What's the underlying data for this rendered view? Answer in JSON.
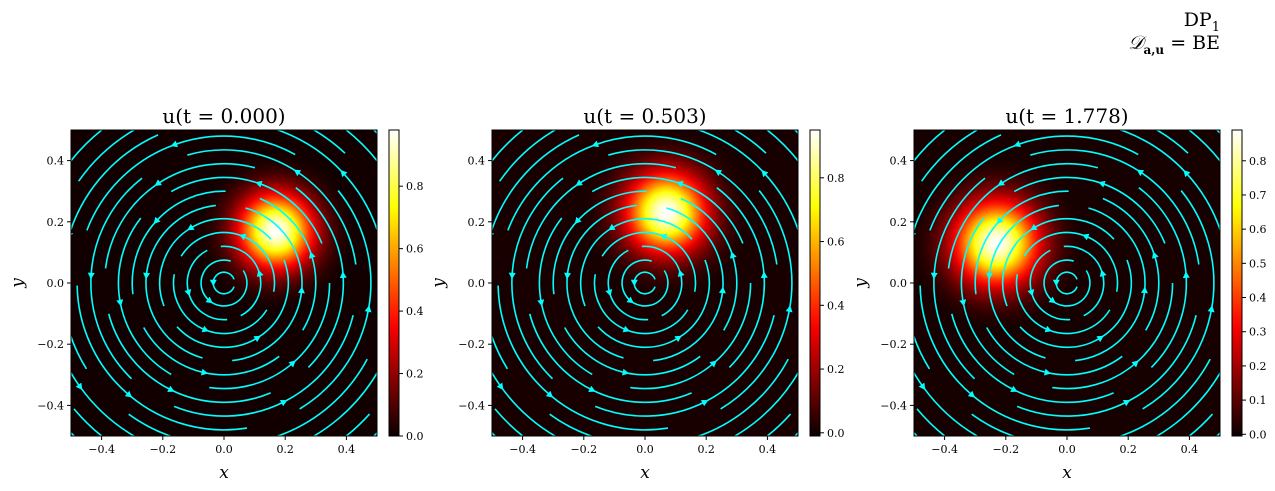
{
  "suptitle": {
    "line1_main": "DP",
    "line1_sub": "1",
    "line2_main": "𝒟",
    "line2_sub": "a,u",
    "line2_rest": " = BE"
  },
  "chart_data": [
    {
      "type": "heatmap",
      "title": "u(t = 0.000)",
      "xlabel": "x",
      "ylabel": "y",
      "xlim": [
        -0.5,
        0.5
      ],
      "ylim": [
        -0.5,
        0.5
      ],
      "xticks": [
        -0.4,
        -0.2,
        0.0,
        0.2,
        0.4
      ],
      "yticks": [
        -0.4,
        -0.2,
        0.0,
        0.2,
        0.4
      ],
      "xtick_labels": [
        "−0.4",
        "−0.2",
        "0.0",
        "0.2",
        "0.4"
      ],
      "ytick_labels": [
        "−0.4",
        "−0.2",
        "0.0",
        "0.2",
        "0.4"
      ],
      "colormap": "hot",
      "streamline_color": "#00ffff",
      "blob": {
        "cx": 0.17,
        "cy": 0.17,
        "sigma": 0.085,
        "peak": 0.98
      },
      "colorbar": {
        "min": 0.0,
        "max": 0.98,
        "ticks": [
          0.0,
          0.2,
          0.4,
          0.6,
          0.8
        ],
        "tick_labels": [
          "0.0",
          "0.2",
          "0.4",
          "0.6",
          "0.8"
        ]
      }
    },
    {
      "type": "heatmap",
      "title": "u(t = 0.503)",
      "xlabel": "x",
      "ylabel": "y",
      "xlim": [
        -0.5,
        0.5
      ],
      "ylim": [
        -0.5,
        0.5
      ],
      "xticks": [
        -0.4,
        -0.2,
        0.0,
        0.2,
        0.4
      ],
      "yticks": [
        -0.4,
        -0.2,
        0.0,
        0.2,
        0.4
      ],
      "xtick_labels": [
        "−0.4",
        "−0.2",
        "0.0",
        "0.2",
        "0.4"
      ],
      "ytick_labels": [
        "−0.4",
        "−0.2",
        "0.0",
        "0.2",
        "0.4"
      ],
      "colormap": "hot",
      "streamline_color": "#00ffff",
      "blob": {
        "cx": 0.07,
        "cy": 0.23,
        "sigma": 0.09,
        "peak": 0.95
      },
      "colorbar": {
        "min": -0.01,
        "max": 0.95,
        "ticks": [
          0.0,
          0.2,
          0.4,
          0.6,
          0.8
        ],
        "tick_labels": [
          "0.0",
          "0.2",
          "0.4",
          "0.6",
          "0.8"
        ]
      }
    },
    {
      "type": "heatmap",
      "title": "u(t = 1.778)",
      "xlabel": "x",
      "ylabel": "y",
      "xlim": [
        -0.5,
        0.5
      ],
      "ylim": [
        -0.5,
        0.5
      ],
      "xticks": [
        -0.4,
        -0.2,
        0.0,
        0.2,
        0.4
      ],
      "yticks": [
        -0.4,
        -0.2,
        0.0,
        0.2,
        0.4
      ],
      "xtick_labels": [
        "−0.4",
        "−0.2",
        "0.0",
        "0.2",
        "0.4"
      ],
      "ytick_labels": [
        "−0.4",
        "−0.2",
        "0.0",
        "0.2",
        "0.4"
      ],
      "colormap": "hot",
      "streamline_color": "#00ffff",
      "blob": {
        "cx": -0.23,
        "cy": 0.13,
        "sigma": 0.095,
        "peak": 0.89
      },
      "colorbar": {
        "min": -0.005,
        "max": 0.89,
        "ticks": [
          0.0,
          0.1,
          0.2,
          0.3,
          0.4,
          0.5,
          0.6,
          0.7,
          0.8
        ],
        "tick_labels": [
          "0.0",
          "0.1",
          "0.2",
          "0.3",
          "0.4",
          "0.5",
          "0.6",
          "0.7",
          "0.8"
        ]
      }
    }
  ]
}
